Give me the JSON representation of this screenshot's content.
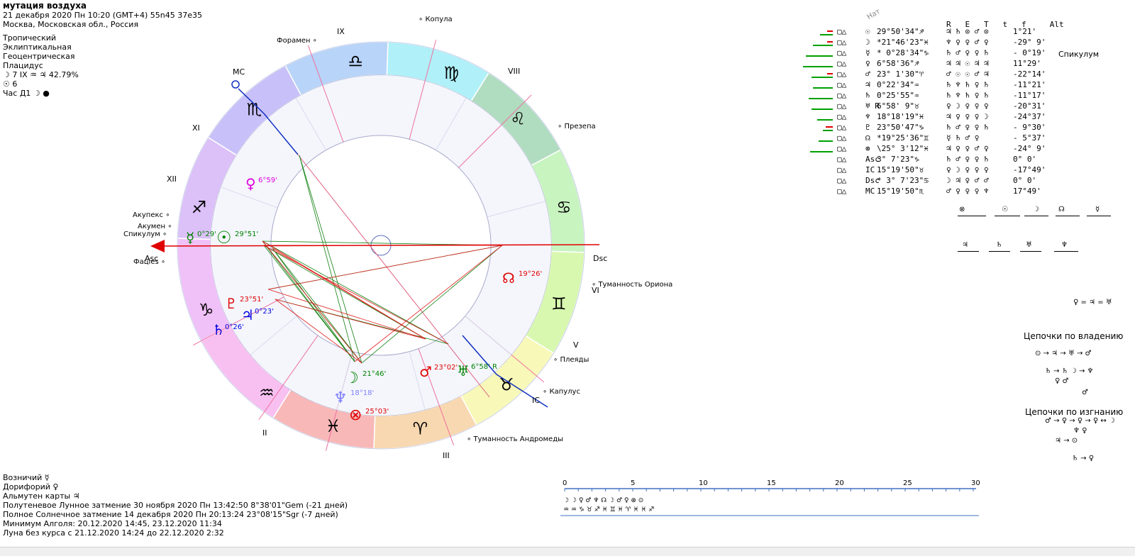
{
  "chart_info": {
    "title": "мутация воздуха",
    "datetime": "21 декабря 2020  Пн  10:20 (GMT+4) 55n45  37e35",
    "location": "Москва, Московская обл., Россия",
    "zodiac": "Тропический",
    "coords": "Эклиптикальная",
    "center": "Геоцентрическая",
    "houses": "Плацидус",
    "moon_phase": "☽  7 IX ♒ ♃ 42.79%",
    "sun_line": "☉  6",
    "hour_line": "Час Д1 ☽ ●"
  },
  "bottom_info": [
    "Возничий ☿",
    "Дорифорий ♀",
    "Альмутен карты ♃",
    "Полутеневое Лунное затмение 30 ноября 2020 Пн 13:42:50  8°38'01\"Gem (-21 дней)",
    "Полное Солнечное затмение 14 декабря 2020 Пн 20:13:24 23°08'15\"Sgr (-7 дней)",
    "Минимум Алголя: 20.12.2020 14:45,  23.12.2020 11:34",
    "Луна без курса с 21.12.2020 14:24 до 22.12.2020  2:32"
  ],
  "wheel": {
    "house_labels": [
      "IX",
      "VIII",
      "XI",
      "XII",
      "MC",
      "Asc",
      "Dsc",
      "VI",
      "V",
      "IC",
      "II",
      "III"
    ],
    "signs": [
      "♎",
      "♍",
      "♌",
      "♋",
      "♊",
      "♉",
      "♈",
      "♓",
      "♒",
      "♑",
      "♐",
      "♏"
    ],
    "stars": [
      "Копула",
      "Форамен",
      "Презепа",
      "Акупекс",
      "Акумен",
      "Спикулум",
      "Фацies",
      "Туманность Ориона",
      "Плеяды",
      "Капулус",
      "Туманность Андромеды"
    ],
    "planets": [
      {
        "glyph": "♀",
        "deg": "6°59'",
        "color": "#e000e0"
      },
      {
        "glyph": "☿",
        "deg": "0°29'",
        "color": "#008000"
      },
      {
        "glyph": "☉",
        "deg": "29°51'",
        "color": "#008000"
      },
      {
        "glyph": "♇",
        "deg": "23°51'",
        "color": "#e00000"
      },
      {
        "glyph": "♃",
        "deg": "0°23'",
        "color": "#0000e0"
      },
      {
        "glyph": "♄",
        "deg": "0°26'",
        "color": "#0000e0"
      },
      {
        "glyph": "☽",
        "deg": "21°46'",
        "color": "#008000"
      },
      {
        "glyph": "♆",
        "deg": "18°18'",
        "color": "#8080ff"
      },
      {
        "glyph": "⊗",
        "deg": "25°03'",
        "color": "#e00000"
      },
      {
        "glyph": "♂",
        "deg": "23°02'",
        "color": "#e00000"
      },
      {
        "glyph": "♅",
        "deg": "6°58' R",
        "color": "#008000"
      },
      {
        "glyph": "☊",
        "deg": "19°26'",
        "color": "#e00000"
      }
    ]
  },
  "table": {
    "header_nat": "Нат",
    "headers": [
      "R",
      "E",
      "T",
      "t",
      "f",
      "Alt"
    ],
    "side_label": "Спикулум",
    "rows": [
      {
        "sym": "☉",
        "pos": "29°50'34\"♐",
        "cols": "♃  ♄  ⊙  ♂  ⊙",
        "alt": "1°21'"
      },
      {
        "sym": "☽",
        "pos": "*21°46'23\"♓",
        "cols": "♆  ♀  ♀  ♂  ♀",
        "alt": "-29° 9'"
      },
      {
        "sym": "☿",
        "pos": "* 0°28'34\"♑",
        "cols": "♄  ♂  ♀  ♀  ♄",
        "alt": "- 0°19'"
      },
      {
        "sym": "♀",
        "pos": "6°58'36\"♐",
        "cols": "♃  ♃  ☉  ♃  ♃",
        "alt": "11°29'"
      },
      {
        "sym": "♂",
        "pos": "23° 1'30\"♈",
        "cols": "♂  ☉  ☉  ♂  ♃",
        "alt": "-22°14'"
      },
      {
        "sym": "♃",
        "pos": "0°22'34\"♒",
        "cols": "♄  ♆  ♄  ♀  ♄",
        "alt": "-11°21'"
      },
      {
        "sym": "♄",
        "pos": "0°25'55\"♒",
        "cols": "♄  ♆  ♄  ♀  ♄",
        "alt": "-11°17'"
      },
      {
        "sym": "♅ R",
        "pos": "6°58' 9\"♉",
        "cols": "♀  ☽  ♀  ♀  ♀",
        "alt": "-20°31'"
      },
      {
        "sym": "♆",
        "pos": "18°18'19\"♓",
        "cols": "♃  ♀  ♀  ♀  ☽",
        "alt": "-24°37'"
      },
      {
        "sym": "♇",
        "pos": "23°50'47\"♑",
        "cols": "♄  ♂  ♀  ♀  ♄",
        "alt": "- 9°30'"
      },
      {
        "sym": "☊",
        "pos": "*19°25'36\"♊",
        "cols": "☿     ♄  ♂  ♀",
        "alt": "- 5°37'"
      },
      {
        "sym": "⊗",
        "pos": "\\25° 3'12\"♓",
        "cols": "♃  ♀  ♀  ♂  ♀",
        "alt": "-24° 9'"
      },
      {
        "sym": "Asc",
        "pos": "3° 7'23\"♑",
        "cols": "♄  ♂  ♀  ♀  ♄",
        "alt": "0° 0'"
      },
      {
        "sym": "IC",
        "pos": "15°19'50\"♉",
        "cols": "♀  ☽  ♀  ♀  ♀",
        "alt": "-17°49'"
      },
      {
        "sym": "Dsc",
        "pos": "* 3° 7'23\"♋",
        "cols": "☽  ♃  ♀  ♂  ♂",
        "alt": "0° 0'"
      },
      {
        "sym": "MC",
        "pos": "15°19'50\"♏",
        "cols": "♂  ♀  ♀  ♀  ♆",
        "alt": "17°49'"
      }
    ]
  },
  "dispositors": {
    "row1": [
      "⊗",
      "☉",
      "☽",
      "☊",
      "☿"
    ],
    "row2": [
      "♃",
      "♄",
      "♅",
      "♆"
    ],
    "equation": "♀ = ♃ = ♅"
  },
  "chains": {
    "ownership_title": "Цепочки по владению",
    "ownership_lines": [
      "⊙ → ♃ → ♅ → ♂",
      "♄ → ♄    ☽ → ♆",
      "♀ ♂",
      "♂"
    ],
    "exile_title": "Цепочки по изгнанию",
    "exile_lines": [
      "♂ → ♀ → ♀ → ♀ ↔ ☽",
      "♆ ♀",
      "♃ → ⊙",
      "♄ → ♀"
    ]
  },
  "timeline": {
    "ticks": [
      "0",
      "5",
      "10",
      "15",
      "20",
      "25",
      "30"
    ],
    "row1": "☽ ☽       ♀ ♂                         ♆ ☊    ☽ ♂ ♀ ⊗          ⊙",
    "row2": "♒ ♒ ♑       ♉ ♐                         ♓ ♊    ♓ ♈ ♓ ♓          ♐"
  }
}
